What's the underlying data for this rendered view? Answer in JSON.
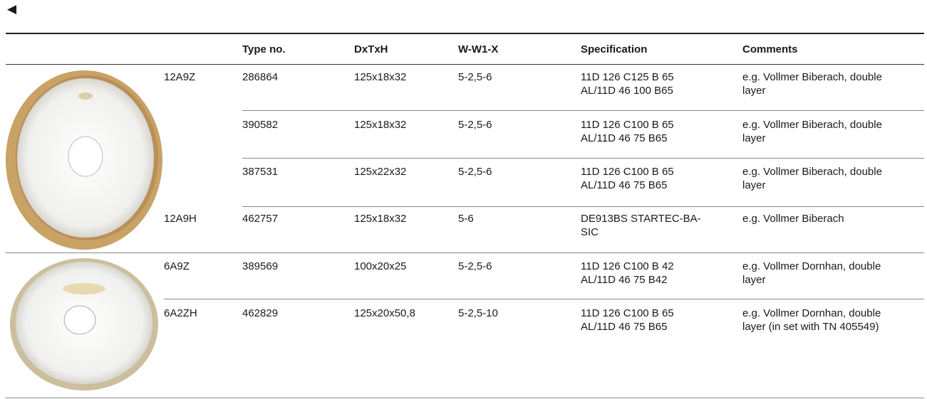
{
  "back_button": "◀",
  "table": {
    "columns": [
      "Type no.",
      "DxTxH",
      "W-W1-X",
      "Specification",
      "Comments"
    ],
    "rows": [
      {
        "shape": "12A9Z",
        "type_no": "286864",
        "dxtxh": "125x18x32",
        "w_w1_x": "5-2,5-6",
        "specification": [
          "11D 126 C125 B 65",
          "AL/11D 46 100 B65"
        ],
        "comments": [
          "e.g. Vollmer Biberach, double",
          "layer"
        ]
      },
      {
        "type_no": "390582",
        "dxtxh": "125x18x32",
        "w_w1_x": "5-2,5-6",
        "specification": [
          "11D 126 C100 B 65",
          "AL/11D 46 75 B65"
        ],
        "comments": [
          "e.g. Vollmer Biberach, double",
          "layer"
        ]
      },
      {
        "type_no": "387531",
        "dxtxh": "125x22x32",
        "w_w1_x": "5-2,5-6",
        "specification": [
          "11D 126 C100 B 65",
          "AL/11D 46 75 B65"
        ],
        "comments": [
          "e.g. Vollmer Biberach, double",
          "layer"
        ]
      },
      {
        "shape": "12A9H",
        "type_no": "462757",
        "dxtxh": "125x18x32",
        "w_w1_x": "5-6",
        "specification": [
          "DE913BS STARTEC-BA-",
          "SIC"
        ],
        "comments": [
          "e.g. Vollmer Biberach"
        ]
      },
      {
        "shape": "6A9Z",
        "type_no": "389569",
        "dxtxh": "100x20x25",
        "w_w1_x": "5-2,5-6",
        "specification": [
          "11D 126 C100 B 42",
          "AL/11D 46 75 B42"
        ],
        "comments": [
          "e.g. Vollmer Dornhan, double",
          "layer"
        ]
      },
      {
        "shape": "6A2ZH",
        "type_no": "462829",
        "dxtxh": "125x20x50,8",
        "w_w1_x": "5-2,5-10",
        "specification": [
          "11D 126 C100 B 65",
          "AL/11D 46 75 B65"
        ],
        "comments": [
          "e.g. Vollmer Dornhan, double",
          "layer (in set with TN 405549)"
        ]
      }
    ]
  }
}
